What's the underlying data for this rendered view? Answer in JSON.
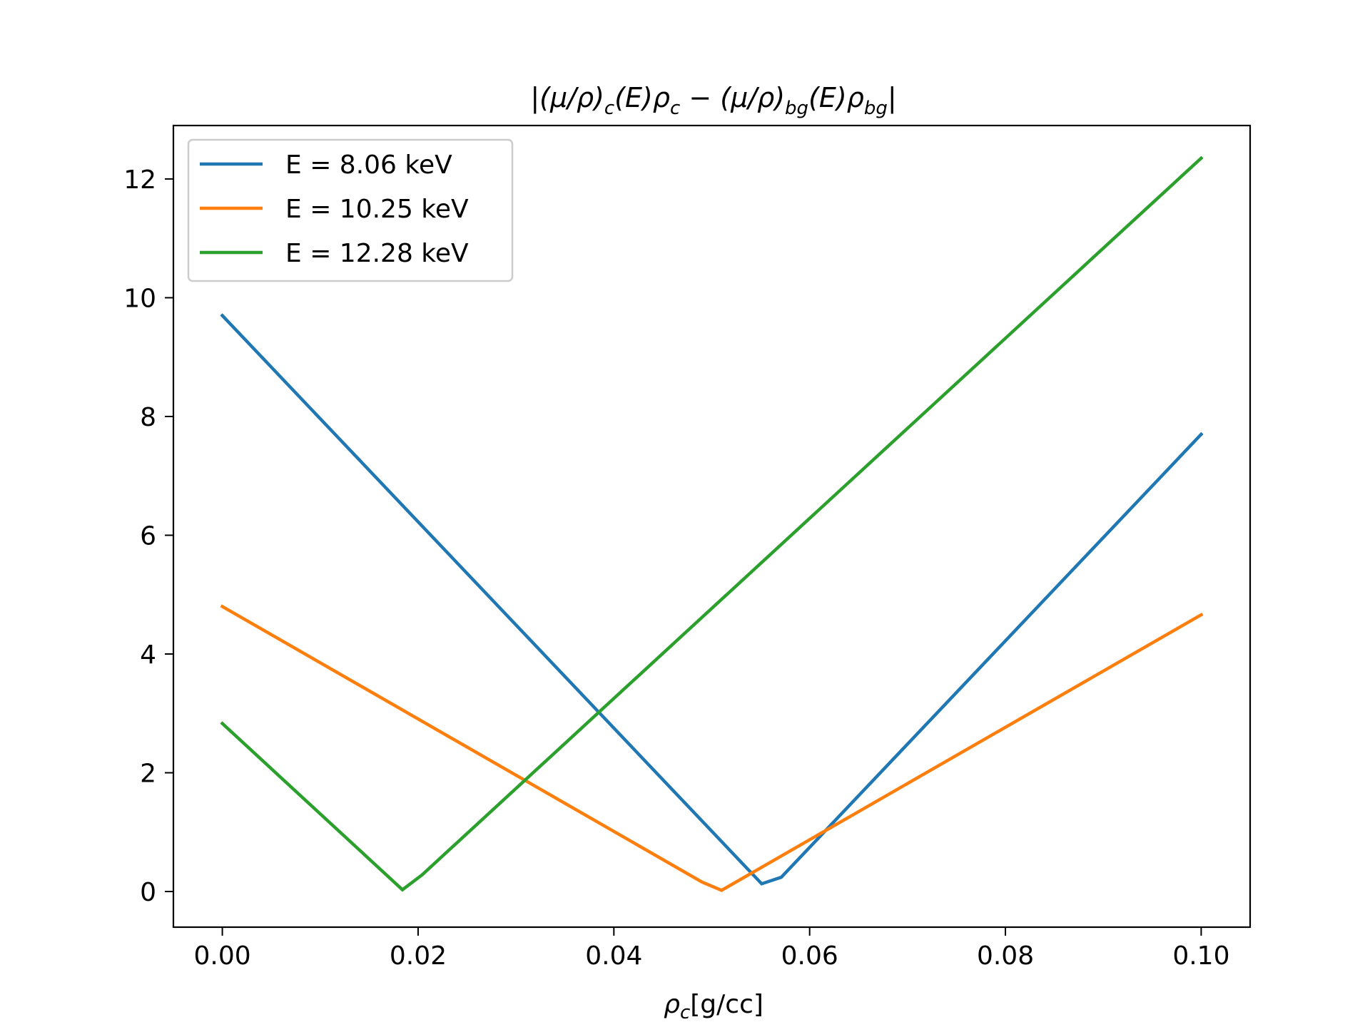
{
  "chart_data": {
    "type": "line",
    "title_parts": {
      "mu_rho_c": "(μ/ρ)",
      "sub_c": "c",
      "mid": "(E)ρ",
      "sub_c2": "c",
      "minus": " − ",
      "mu_rho_bg": "(μ/ρ)",
      "sub_bg": "bg",
      "mid2": "(E)ρ",
      "sub_bg2": "bg",
      "bar_left": "|",
      "bar_right": "|"
    },
    "xlabel_parts": {
      "rho": "ρ",
      "sub": "c",
      "unit": "[g/cc]"
    },
    "ylabel": "",
    "xlim": [
      -0.005,
      0.105
    ],
    "ylim": [
      -0.6,
      12.9
    ],
    "xticks": [
      0.0,
      0.02,
      0.04,
      0.06,
      0.08,
      0.1
    ],
    "xtick_labels": [
      "0.00",
      "0.02",
      "0.04",
      "0.06",
      "0.08",
      "0.10"
    ],
    "yticks": [
      0,
      2,
      4,
      6,
      8,
      10,
      12
    ],
    "ytick_labels": [
      "0",
      "2",
      "4",
      "6",
      "8",
      "10",
      "12"
    ],
    "grid": false,
    "legend_position": "upper-left",
    "series": [
      {
        "name": "E = 8.06 keV",
        "color": "#1f77b4",
        "x": [
          0.0,
          0.0551,
          0.0571,
          0.1
        ],
        "y": [
          9.7,
          0.13,
          0.24,
          7.7
        ]
      },
      {
        "name": "E = 10.25 keV",
        "color": "#ff7f0e",
        "x": [
          0.0,
          0.049,
          0.051,
          0.1
        ],
        "y": [
          4.8,
          0.16,
          0.02,
          4.66
        ]
      },
      {
        "name": "E = 12.28 keV",
        "color": "#2ca02c",
        "x": [
          0.0,
          0.0184,
          0.0204,
          0.1
        ],
        "y": [
          2.83,
          0.03,
          0.28,
          12.35
        ]
      }
    ]
  }
}
